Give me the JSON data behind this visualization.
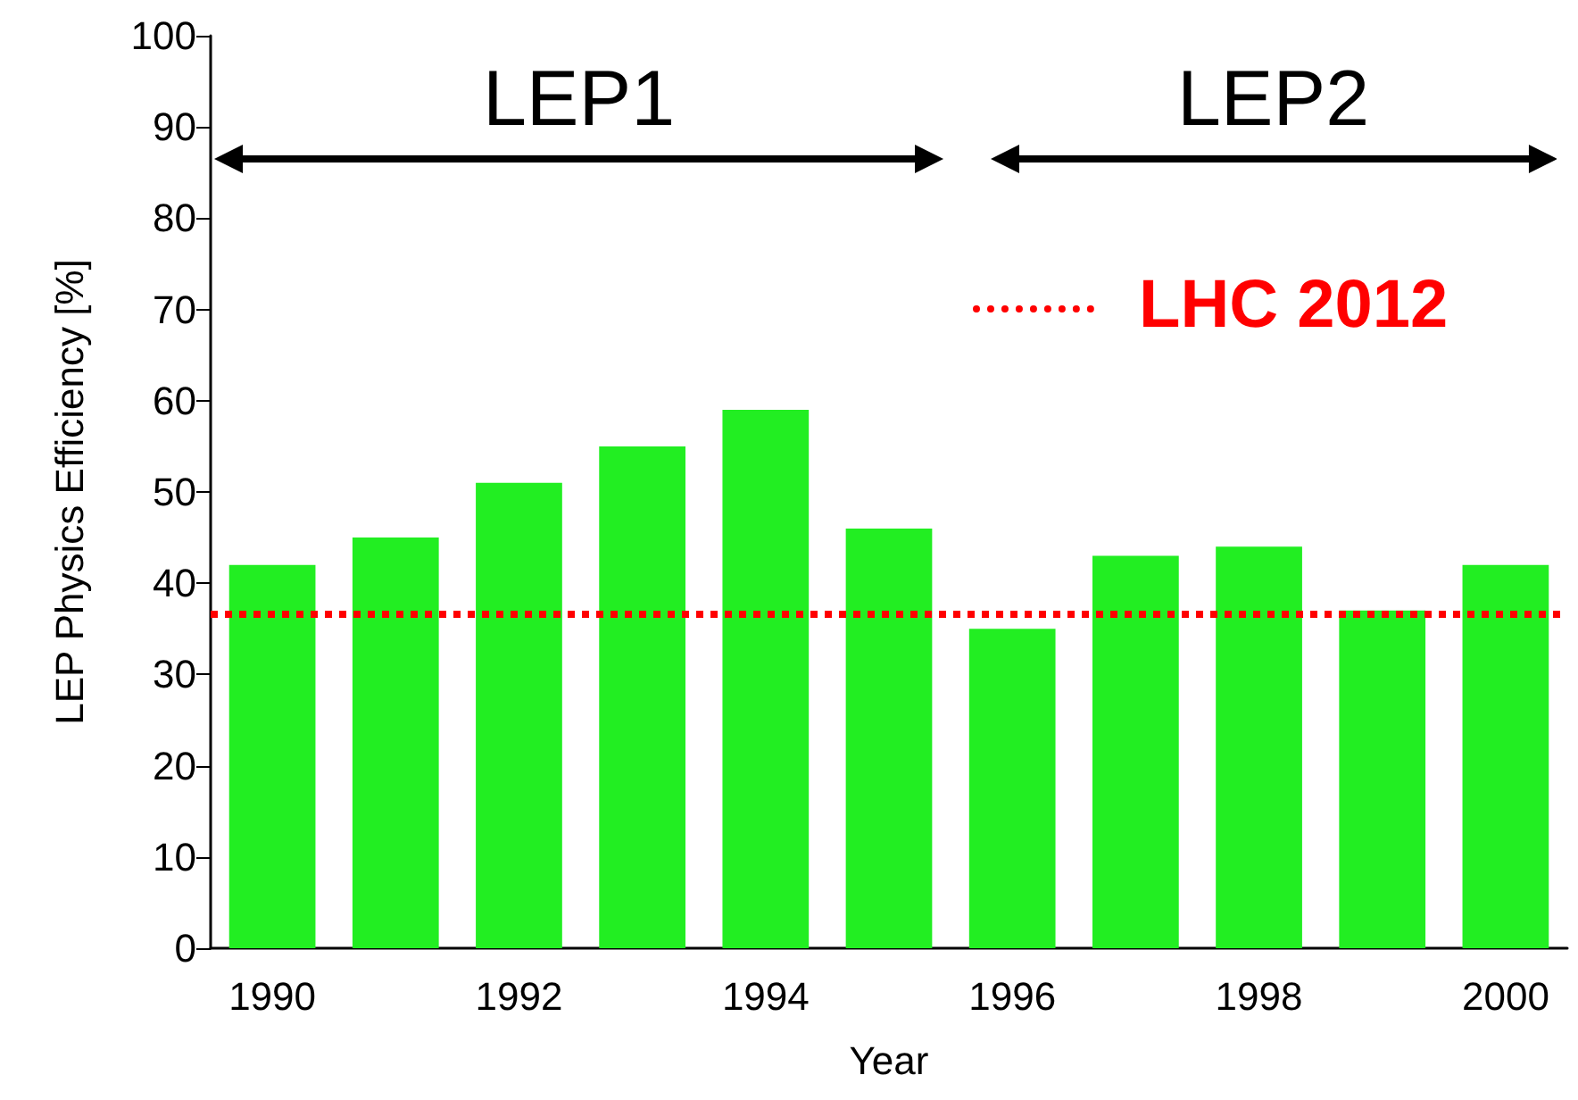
{
  "chart_data": {
    "type": "bar",
    "xlabel": "Year",
    "ylabel": "LEP Physics Efficiency [%]",
    "categories": [
      "1990",
      null,
      "1992",
      null,
      "1994",
      null,
      "1996",
      null,
      "1998",
      null,
      "2000"
    ],
    "values": [
      42,
      45,
      51,
      55,
      59,
      46,
      35,
      43,
      44,
      37,
      42
    ],
    "color": "#22ee22",
    "ylim": [
      0,
      100
    ],
    "yticks": [
      0,
      10,
      20,
      30,
      40,
      50,
      60,
      70,
      80,
      90,
      100
    ],
    "grid": false,
    "ref_lines": [
      {
        "axis": "y",
        "value": 36.6,
        "label": "LHC 2012",
        "color": "#ff0000",
        "line_style": "dotted"
      }
    ],
    "annotations": [
      "LEP1",
      "LEP2"
    ]
  }
}
